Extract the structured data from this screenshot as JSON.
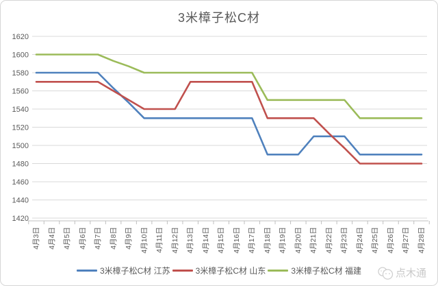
{
  "title": "3米樟子松C材",
  "watermark": {
    "text": "点木通",
    "icon": "chat-bubbles-icon"
  },
  "colors": {
    "grid": "#d9d9d9",
    "axis": "#bfbfbf",
    "text": "#595959",
    "watermark": "#c9c9c9"
  },
  "chart_data": {
    "type": "line",
    "title": "3米樟子松C材",
    "categories": [
      "4月3日",
      "4月4日",
      "4月5日",
      "4月6日",
      "4月7日",
      "4月8日",
      "4月9日",
      "4月10日",
      "4月11日",
      "4月12日",
      "4月13日",
      "4月14日",
      "4月15日",
      "4月16日",
      "4月17日",
      "4月18日",
      "4月19日",
      "4月20日",
      "4月21日",
      "4月22日",
      "4月23日",
      "4月24日",
      "4月25日",
      "4月26日",
      "4月27日",
      "4月28日"
    ],
    "series": [
      {
        "name": "3米樟子松C材 江苏",
        "color": "#4F81BD",
        "values": [
          1580,
          1580,
          1580,
          1580,
          1580,
          1563,
          1547,
          1530,
          1530,
          1530,
          1530,
          1530,
          1530,
          1530,
          1530,
          1490,
          1490,
          1490,
          1510,
          1510,
          1510,
          1490,
          1490,
          1490,
          1490,
          1490
        ]
      },
      {
        "name": "3米樟子松C材 山东",
        "color": "#C0504D",
        "values": [
          1570,
          1570,
          1570,
          1570,
          1570,
          1560,
          1550,
          1540,
          1540,
          1540,
          1570,
          1570,
          1570,
          1570,
          1570,
          1530,
          1530,
          1530,
          1530,
          1513,
          1497,
          1480,
          1480,
          1480,
          1480,
          1480
        ]
      },
      {
        "name": "3米樟子松C材 福建",
        "color": "#9BBB59",
        "values": [
          1600,
          1600,
          1600,
          1600,
          1600,
          1593,
          1587,
          1580,
          1580,
          1580,
          1580,
          1580,
          1580,
          1580,
          1580,
          1550,
          1550,
          1550,
          1550,
          1550,
          1550,
          1530,
          1530,
          1530,
          1530,
          1530
        ]
      }
    ],
    "xlabel": "",
    "ylabel": "",
    "ylim": [
      1420,
      1620
    ],
    "ytick_step": 20,
    "grid": "horizontal-only",
    "legend_position": "bottom"
  }
}
